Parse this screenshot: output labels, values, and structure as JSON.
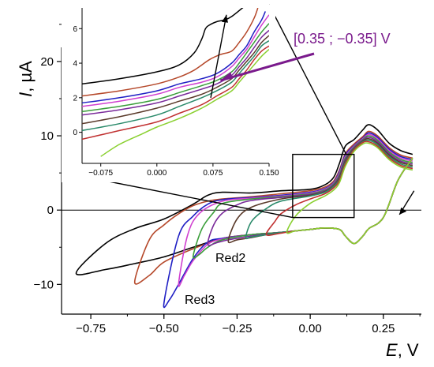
{
  "chart_data": [
    {
      "type": "line",
      "panel": "main",
      "xlabel_var": "E",
      "xlabel_unit": ", V",
      "ylabel_var": "I",
      "ylabel_unit": ", µA",
      "xlim": [
        -0.85,
        0.38
      ],
      "ylim": [
        -14,
        27
      ],
      "xticks": [
        "−0.75",
        "−0.50",
        "−0.25",
        "0.00",
        "0.25"
      ],
      "xtick_values": [
        -0.75,
        -0.5,
        -0.25,
        0.0,
        0.25
      ],
      "yticks": [
        "−10",
        "0",
        "10",
        "20"
      ],
      "ytick_values": [
        -10,
        0,
        10,
        20
      ],
      "annotations": [
        "Red2",
        "Red3"
      ],
      "range_label": "[0.35 ; −0.35] V",
      "series": [
        {
          "color": "#000000",
          "x": [
            0.35,
            0.3,
            0.25,
            0.2,
            0.18,
            0.15,
            0.12,
            0.1,
            0.05,
            0.0,
            -0.1,
            -0.2,
            -0.3,
            -0.4,
            -0.5,
            -0.6,
            -0.7,
            -0.8,
            -0.7,
            -0.6,
            -0.5,
            -0.4,
            -0.35,
            -0.3,
            -0.2,
            -0.1,
            0.0,
            0.05,
            0.08,
            0.1,
            0.12,
            0.15,
            0.18,
            0.2,
            0.23,
            0.27,
            0.31,
            0.35
          ],
          "y": [
            7,
            4,
            -1,
            -2.5,
            -3.5,
            -4.5,
            -3.5,
            -2.6,
            -2.4,
            -2.6,
            -3,
            -3.3,
            -3.8,
            -5,
            -6.3,
            -7.2,
            -8,
            -8.5,
            -4.5,
            -2.5,
            -1.2,
            0.8,
            2,
            2.4,
            2.3,
            2.6,
            2.8,
            3.4,
            4.4,
            6.3,
            8.6,
            9.5,
            10.8,
            11.5,
            10.8,
            9,
            8,
            7.5
          ]
        },
        {
          "color": "#b5482a",
          "x": [
            0.35,
            0.3,
            0.25,
            0.2,
            0.18,
            0.15,
            0.12,
            0.1,
            0.05,
            0.0,
            -0.1,
            -0.2,
            -0.3,
            -0.4,
            -0.5,
            -0.55,
            -0.6,
            -0.55,
            -0.5,
            -0.45,
            -0.4,
            -0.35,
            -0.3,
            -0.2,
            -0.1,
            0.0,
            0.05,
            0.08,
            0.1,
            0.12,
            0.15,
            0.18,
            0.2,
            0.23,
            0.27,
            0.31,
            0.35
          ],
          "y": [
            7,
            4,
            -1,
            -2.5,
            -3.5,
            -4.5,
            -3.5,
            -2.6,
            -2.4,
            -2.6,
            -3,
            -3.3,
            -3.8,
            -5.2,
            -7,
            -8.8,
            -9.7,
            -4,
            -2,
            -0.5,
            0.6,
            1.2,
            1.5,
            1.8,
            2.2,
            2.6,
            3.1,
            3.9,
            5.4,
            7.6,
            8.9,
            9.9,
            10.6,
            10,
            8.4,
            7.4,
            7
          ]
        },
        {
          "color": "#1f1fc4",
          "x": [
            0.35,
            0.3,
            0.25,
            0.2,
            0.18,
            0.15,
            0.12,
            0.1,
            0.05,
            0.0,
            -0.1,
            -0.2,
            -0.3,
            -0.35,
            -0.4,
            -0.45,
            -0.48,
            -0.5,
            -0.45,
            -0.4,
            -0.35,
            -0.3,
            -0.2,
            -0.1,
            0.0,
            0.05,
            0.08,
            0.1,
            0.12,
            0.15,
            0.18,
            0.2,
            0.23,
            0.27,
            0.31,
            0.35
          ],
          "y": [
            7,
            4,
            -1,
            -2.5,
            -3.5,
            -4.5,
            -3.5,
            -2.6,
            -2.4,
            -2.6,
            -3,
            -3.3,
            -3.8,
            -4.3,
            -6.5,
            -10,
            -12,
            -12.5,
            -3.5,
            -0.8,
            0.8,
            1.4,
            1.7,
            2,
            2.4,
            2.9,
            3.7,
            5.2,
            7.4,
            8.7,
            9.7,
            10.4,
            9.8,
            8.2,
            7.2,
            6.8
          ]
        },
        {
          "color": "#d040d0",
          "x": [
            0.35,
            0.3,
            0.25,
            0.2,
            0.18,
            0.15,
            0.12,
            0.1,
            0.05,
            0.0,
            -0.1,
            -0.2,
            -0.3,
            -0.35,
            -0.4,
            -0.43,
            -0.45,
            -0.42,
            -0.38,
            -0.3,
            -0.2,
            -0.1,
            0.0,
            0.05,
            0.08,
            0.1,
            0.12,
            0.15,
            0.18,
            0.2,
            0.23,
            0.27,
            0.31,
            0.35
          ],
          "y": [
            7,
            4,
            -1,
            -2.5,
            -3.5,
            -4.5,
            -3.5,
            -2.6,
            -2.4,
            -2.6,
            -3,
            -3.3,
            -3.9,
            -4.6,
            -6.8,
            -8.8,
            -10,
            -3.5,
            -0.5,
            1.2,
            1.6,
            1.9,
            2.3,
            2.8,
            3.6,
            5,
            7.2,
            8.6,
            9.6,
            10.2,
            9.6,
            8,
            7,
            6.6
          ]
        },
        {
          "color": "#3a9e3a",
          "x": [
            0.35,
            0.3,
            0.25,
            0.2,
            0.18,
            0.15,
            0.12,
            0.1,
            0.05,
            0.0,
            -0.1,
            -0.2,
            -0.3,
            -0.35,
            -0.38,
            -0.4,
            -0.37,
            -0.33,
            -0.3,
            -0.2,
            -0.1,
            0.0,
            0.05,
            0.08,
            0.1,
            0.12,
            0.15,
            0.18,
            0.2,
            0.23,
            0.27,
            0.31,
            0.35
          ],
          "y": [
            7,
            4,
            -1,
            -2.5,
            -3.5,
            -4.5,
            -3.5,
            -2.6,
            -2.4,
            -2.6,
            -3,
            -3.3,
            -4,
            -5,
            -6,
            -6.2,
            -2.5,
            -0.3,
            0.9,
            1.5,
            1.8,
            2.2,
            2.7,
            3.5,
            4.8,
            7,
            8.5,
            9.5,
            10,
            9.4,
            7.8,
            6.8,
            6.4
          ]
        },
        {
          "color": "#7a2a9a",
          "x": [
            0.35,
            0.3,
            0.25,
            0.2,
            0.18,
            0.15,
            0.12,
            0.1,
            0.05,
            0.0,
            -0.1,
            -0.2,
            -0.28,
            -0.32,
            -0.35,
            -0.33,
            -0.3,
            -0.25,
            -0.2,
            -0.1,
            0.0,
            0.05,
            0.08,
            0.1,
            0.12,
            0.15,
            0.18,
            0.2,
            0.23,
            0.27,
            0.31,
            0.35
          ],
          "y": [
            7,
            4,
            -1,
            -2.5,
            -3.5,
            -4.5,
            -3.5,
            -2.6,
            -2.4,
            -2.6,
            -3,
            -3.5,
            -4,
            -4.4,
            -4.6,
            -2,
            -0.4,
            0.7,
            1.3,
            1.7,
            2.1,
            2.6,
            3.4,
            4.6,
            6.8,
            8.4,
            9.4,
            9.8,
            9.2,
            7.6,
            6.6,
            6.2
          ]
        },
        {
          "color": "#5a3a2a",
          "x": [
            0.35,
            0.3,
            0.25,
            0.2,
            0.18,
            0.15,
            0.12,
            0.1,
            0.05,
            0.0,
            -0.1,
            -0.15,
            -0.2,
            -0.25,
            -0.28,
            -0.25,
            -0.2,
            -0.1,
            0.0,
            0.05,
            0.08,
            0.1,
            0.12,
            0.15,
            0.18,
            0.2,
            0.23,
            0.27,
            0.31,
            0.35
          ],
          "y": [
            7,
            4,
            -1,
            -2.5,
            -3.5,
            -4.5,
            -3.5,
            -2.6,
            -2.4,
            -2.6,
            -3,
            -3.3,
            -3.7,
            -4,
            -4.2,
            -1.2,
            0.4,
            1.5,
            2,
            2.5,
            3.3,
            4.4,
            6.6,
            8.3,
            9.3,
            9.6,
            9,
            7.4,
            6.4,
            6
          ]
        },
        {
          "color": "#2a8a6a",
          "x": [
            0.35,
            0.3,
            0.25,
            0.2,
            0.18,
            0.15,
            0.12,
            0.1,
            0.05,
            0.0,
            -0.1,
            -0.15,
            -0.2,
            -0.22,
            -0.2,
            -0.15,
            -0.1,
            0.0,
            0.05,
            0.08,
            0.1,
            0.12,
            0.15,
            0.18,
            0.2,
            0.23,
            0.27,
            0.31,
            0.35
          ],
          "y": [
            7,
            4,
            -1,
            -2.5,
            -3.5,
            -4.5,
            -3.5,
            -2.6,
            -2.4,
            -2.6,
            -3,
            -3.3,
            -3.6,
            -3.7,
            -1.5,
            0.2,
            1.2,
            1.9,
            2.4,
            3.2,
            4.2,
            6.4,
            8.2,
            9.2,
            9.4,
            8.8,
            7.2,
            6.2,
            5.8
          ]
        },
        {
          "color": "#c03030",
          "x": [
            0.35,
            0.3,
            0.25,
            0.2,
            0.18,
            0.15,
            0.12,
            0.1,
            0.05,
            0.0,
            -0.05,
            -0.1,
            -0.15,
            -0.12,
            -0.1,
            -0.05,
            0.0,
            0.05,
            0.08,
            0.1,
            0.12,
            0.15,
            0.18,
            0.2,
            0.23,
            0.27,
            0.31,
            0.35
          ],
          "y": [
            7,
            4,
            -1,
            -2.5,
            -3.5,
            -4.5,
            -3.5,
            -2.6,
            -2.4,
            -2.6,
            -2.8,
            -3.1,
            -3.3,
            -1.5,
            -0.5,
            0.7,
            1.5,
            2.2,
            3,
            4,
            6.2,
            8.1,
            9.1,
            9.2,
            8.6,
            7,
            6,
            5.6
          ]
        },
        {
          "color": "#8ad030",
          "x": [
            0.35,
            0.3,
            0.25,
            0.2,
            0.18,
            0.15,
            0.12,
            0.1,
            0.05,
            0.0,
            -0.05,
            -0.08,
            -0.05,
            0.0,
            0.05,
            0.08,
            0.1,
            0.12,
            0.15,
            0.18,
            0.2,
            0.23,
            0.27,
            0.31,
            0.35
          ],
          "y": [
            7,
            4,
            -1,
            -2.5,
            -3.5,
            -4.5,
            -3.5,
            -2.6,
            -2.4,
            -2.6,
            -2.8,
            -3,
            -0.8,
            0.9,
            1.9,
            2.7,
            3.7,
            5.9,
            7.9,
            8.9,
            9,
            8.4,
            6.8,
            5.8,
            5.4
          ]
        }
      ]
    },
    {
      "type": "line",
      "panel": "inset",
      "xlim": [
        -0.1,
        0.15
      ],
      "ylim": [
        -1.8,
        7.2
      ],
      "xticks": [
        "−0.075",
        "0.000",
        "0.075",
        "0.150"
      ],
      "xtick_values": [
        -0.075,
        0.0,
        0.075,
        0.15
      ],
      "yticks": [
        "0",
        "2",
        "4",
        "6"
      ],
      "ytick_values": [
        0,
        2,
        4,
        6
      ],
      "series": [
        {
          "color": "#000000",
          "x": [
            -0.1,
            -0.05,
            0.0,
            0.03,
            0.05,
            0.06,
            0.065,
            0.07,
            0.08,
            0.09,
            0.1,
            0.12
          ],
          "y": [
            2.8,
            3.1,
            3.5,
            3.9,
            4.6,
            5.4,
            6.0,
            6.2,
            6.4,
            6.5,
            6.7,
            7.4
          ]
        },
        {
          "color": "#b5482a",
          "x": [
            -0.1,
            -0.05,
            0.0,
            0.03,
            0.05,
            0.07,
            0.085,
            0.1,
            0.11,
            0.12,
            0.13,
            0.135
          ],
          "y": [
            2.1,
            2.4,
            2.8,
            3.2,
            3.6,
            4.2,
            4.5,
            4.7,
            5.2,
            5.8,
            6.6,
            7.2
          ]
        },
        {
          "color": "#1f1fc4",
          "x": [
            -0.1,
            -0.05,
            0.0,
            0.03,
            0.06,
            0.08,
            0.1,
            0.11,
            0.12,
            0.13,
            0.14,
            0.145
          ],
          "y": [
            1.7,
            2.0,
            2.4,
            2.8,
            3.1,
            3.4,
            4.0,
            4.5,
            5.0,
            5.8,
            6.5,
            7.0
          ]
        },
        {
          "color": "#d040d0",
          "x": [
            -0.1,
            -0.05,
            0.0,
            0.03,
            0.06,
            0.08,
            0.1,
            0.11,
            0.12,
            0.13,
            0.14,
            0.15
          ],
          "y": [
            1.5,
            1.8,
            2.2,
            2.6,
            2.9,
            3.2,
            3.8,
            4.3,
            4.8,
            5.5,
            6.2,
            6.8
          ]
        },
        {
          "color": "#3a9e3a",
          "x": [
            -0.1,
            -0.05,
            0.0,
            0.03,
            0.06,
            0.08,
            0.1,
            0.11,
            0.12,
            0.13,
            0.14,
            0.15
          ],
          "y": [
            1.2,
            1.5,
            1.9,
            2.3,
            2.7,
            3.0,
            3.5,
            4.0,
            4.6,
            5.2,
            5.8,
            6.3
          ]
        },
        {
          "color": "#7a2a9a",
          "x": [
            -0.1,
            -0.05,
            0.0,
            0.03,
            0.06,
            0.08,
            0.1,
            0.11,
            0.12,
            0.13,
            0.14,
            0.15
          ],
          "y": [
            1.0,
            1.3,
            1.7,
            2.1,
            2.5,
            2.8,
            3.3,
            3.8,
            4.3,
            4.9,
            5.5,
            5.9
          ]
        },
        {
          "color": "#5a3a2a",
          "x": [
            -0.1,
            -0.05,
            0.0,
            0.03,
            0.06,
            0.08,
            0.1,
            0.11,
            0.12,
            0.13,
            0.14,
            0.15
          ],
          "y": [
            0.5,
            0.9,
            1.4,
            1.8,
            2.2,
            2.6,
            3.1,
            3.6,
            4.1,
            4.6,
            5.2,
            5.6
          ]
        },
        {
          "color": "#2a8a6a",
          "x": [
            -0.1,
            -0.05,
            0.0,
            0.03,
            0.06,
            0.08,
            0.1,
            0.11,
            0.12,
            0.13,
            0.14,
            0.15
          ],
          "y": [
            0.1,
            0.5,
            1.0,
            1.5,
            2.0,
            2.4,
            2.9,
            3.4,
            3.9,
            4.4,
            5.0,
            5.3
          ]
        },
        {
          "color": "#c03030",
          "x": [
            -0.1,
            -0.05,
            0.0,
            0.03,
            0.06,
            0.08,
            0.1,
            0.11,
            0.12,
            0.13,
            0.14,
            0.15
          ],
          "y": [
            -0.4,
            0.1,
            0.6,
            1.1,
            1.6,
            2.1,
            2.6,
            3.1,
            3.6,
            4.2,
            4.7,
            5.0
          ]
        },
        {
          "color": "#8ad030",
          "x": [
            -0.075,
            -0.05,
            -0.02,
            0.0,
            0.03,
            0.06,
            0.08,
            0.1,
            0.11,
            0.12,
            0.13,
            0.14,
            0.15
          ],
          "y": [
            -1.4,
            -0.7,
            -0.1,
            0.3,
            0.8,
            1.4,
            1.9,
            2.4,
            2.9,
            3.4,
            3.9,
            4.4,
            4.8
          ]
        }
      ]
    }
  ]
}
